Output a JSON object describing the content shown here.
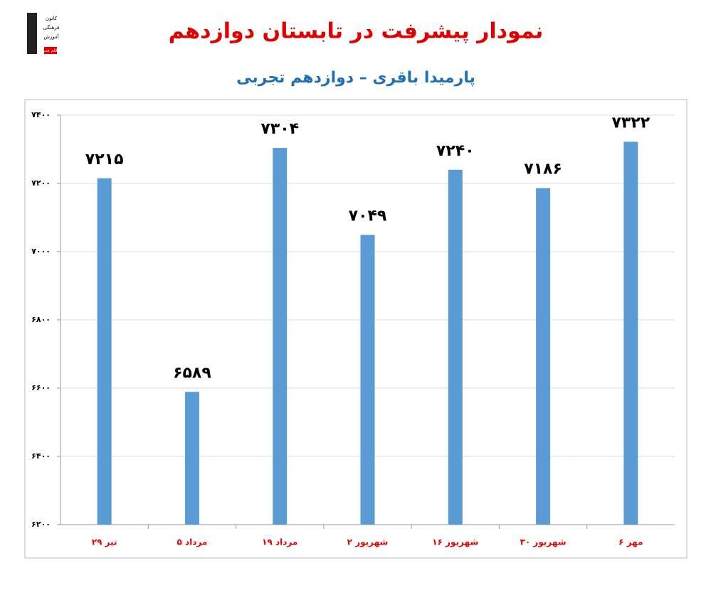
{
  "logo": {
    "lines": [
      "کانون",
      "فرهنگی",
      "آموزش",
      "قلم چی"
    ]
  },
  "chart_data": {
    "type": "bar",
    "title": "نمودار پیشرفت در تابستان دوازدهم",
    "subtitle": "پارمیدا باقری – دوازدهم تجربی",
    "categories": [
      "۲۹ تیر",
      "۵ مرداد",
      "۱۹ مرداد",
      "۲ شهریور",
      "۱۶ شهریور",
      "۳۰ شهریور",
      "۶ مهر"
    ],
    "values": [
      7215,
      6589,
      7304,
      7049,
      7240,
      7186,
      7322
    ],
    "value_labels": [
      "۷۲۱۵",
      "۶۵۸۹",
      "۷۳۰۴",
      "۷۰۴۹",
      "۷۲۴۰",
      "۷۱۸۶",
      "۷۳۲۲"
    ],
    "color": "#5b9bd5",
    "ylim": [
      6200,
      7400
    ],
    "yticks": [
      {
        "value": 6200,
        "label": "۶۲۰۰"
      },
      {
        "value": 6400,
        "label": "۶۴۰۰"
      },
      {
        "value": 6600,
        "label": "۶۶۰۰"
      },
      {
        "value": 6800,
        "label": "۶۸۰۰"
      },
      {
        "value": 7000,
        "label": "۷۰۰۰"
      },
      {
        "value": 7200,
        "label": "۷۲۰۰"
      },
      {
        "value": 7400,
        "label": "۷۴۰۰"
      }
    ],
    "grid": true
  }
}
